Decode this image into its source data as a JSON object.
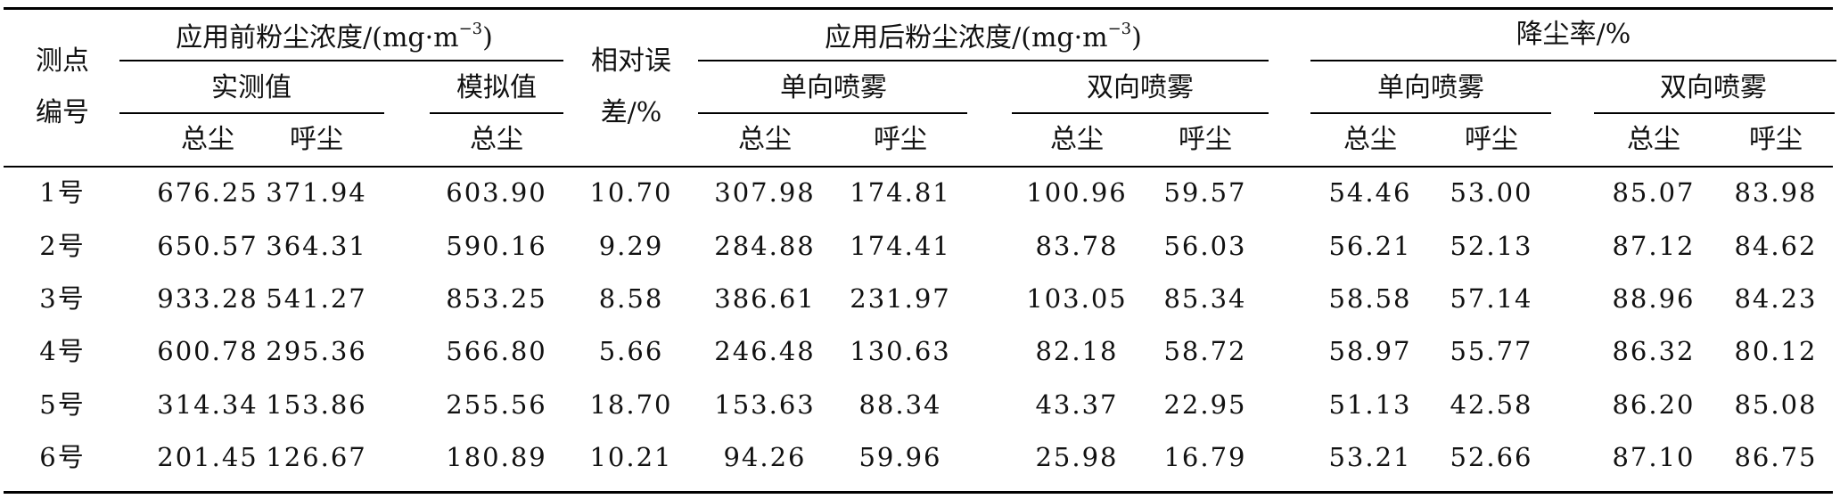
{
  "table": {
    "headers": {
      "point_line1": "测点",
      "point_line2": "编号",
      "before_group": "应用前粉尘浓度/(mg·m",
      "before_exp": "−3",
      "before_close": ")",
      "measured": "实测值",
      "simulated": "模拟值",
      "error_line1": "相对误",
      "error_line2": "差/%",
      "after_group": "应用后粉尘浓度/(mg·m",
      "after_exp": "−3",
      "after_close": ")",
      "single_spray": "单向喷雾",
      "double_spray": "双向喷雾",
      "reduction_group": "降尘率/%",
      "reduction_single": "单向喷雾",
      "reduction_double": "双向喷雾",
      "total_dust": "总尘",
      "respirable_dust": "呼尘"
    },
    "rows": [
      [
        "1号",
        "676.25",
        "371.94",
        "603.90",
        "10.70",
        "307.98",
        "174.81",
        "100.96",
        "59.57",
        "54.46",
        "53.00",
        "85.07",
        "83.98"
      ],
      [
        "2号",
        "650.57",
        "364.31",
        "590.16",
        "9.29",
        "284.88",
        "174.41",
        "83.78",
        "56.03",
        "56.21",
        "52.13",
        "87.12",
        "84.62"
      ],
      [
        "3号",
        "933.28",
        "541.27",
        "853.25",
        "8.58",
        "386.61",
        "231.97",
        "103.05",
        "85.34",
        "58.58",
        "57.14",
        "88.96",
        "84.23"
      ],
      [
        "4号",
        "600.78",
        "295.36",
        "566.80",
        "5.66",
        "246.48",
        "130.63",
        "82.18",
        "58.72",
        "58.97",
        "55.77",
        "86.32",
        "80.12"
      ],
      [
        "5号",
        "314.34",
        "153.86",
        "255.56",
        "18.70",
        "153.63",
        "88.34",
        "43.37",
        "22.95",
        "51.13",
        "42.58",
        "86.20",
        "85.08"
      ],
      [
        "6号",
        "201.45",
        "126.67",
        "180.89",
        "10.21",
        "94.26",
        "59.96",
        "25.98",
        "16.79",
        "53.21",
        "52.66",
        "87.10",
        "86.75"
      ]
    ]
  }
}
